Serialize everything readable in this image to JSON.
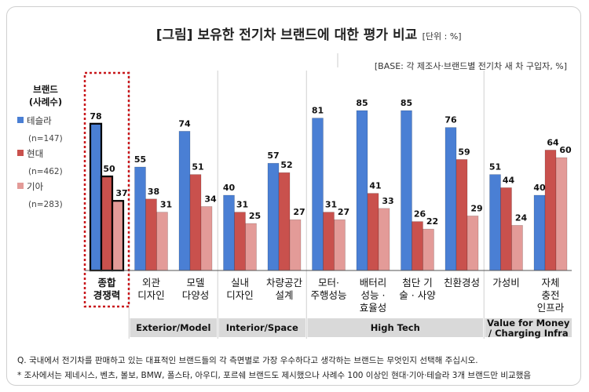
{
  "chart_data": {
    "type": "bar",
    "title": "[그림] 보유한 전기차 브랜드에 대한 평가 비교",
    "unit": "[단위 : %]",
    "base": "[BASE: 각 제조사·브랜드별 전기차 새 차 구입자, %]",
    "legend": {
      "title_line1": "브랜드",
      "title_line2": "(사례수)"
    },
    "series": [
      {
        "name": "테슬라",
        "n": "(n=147)",
        "color": "#4a7fd4",
        "values": [
          78,
          55,
          74,
          40,
          57,
          81,
          85,
          85,
          76,
          51,
          40
        ]
      },
      {
        "name": "현대",
        "n": "(n=462)",
        "color": "#c9514d",
        "values": [
          50,
          38,
          51,
          31,
          52,
          31,
          41,
          26,
          59,
          44,
          64
        ]
      },
      {
        "name": "기아",
        "n": "(n=283)",
        "color": "#e39b98",
        "values": [
          37,
          31,
          34,
          25,
          27,
          27,
          33,
          22,
          29,
          24,
          60
        ]
      }
    ],
    "categories": [
      {
        "lines": [
          "종합",
          "경쟁력"
        ],
        "highlight": true
      },
      {
        "lines": [
          "외관",
          "디자인"
        ]
      },
      {
        "lines": [
          "모델",
          "다양성"
        ]
      },
      {
        "lines": [
          "실내",
          "디자인"
        ]
      },
      {
        "lines": [
          "차량공간",
          "설계"
        ]
      },
      {
        "lines": [
          "모터·",
          "주행성능"
        ]
      },
      {
        "lines": [
          "배터리",
          "성능 ·",
          "효율성"
        ]
      },
      {
        "lines": [
          "첨단 기",
          "술 · 사양"
        ]
      },
      {
        "lines": [
          "친환경성"
        ]
      },
      {
        "lines": [
          "가성비"
        ]
      },
      {
        "lines": [
          "자체",
          "충전",
          "인프라"
        ]
      }
    ],
    "groups": [
      {
        "lines": [
          "Exterior/Model"
        ],
        "from": 1,
        "to": 2
      },
      {
        "lines": [
          "Interior/Space"
        ],
        "from": 3,
        "to": 4
      },
      {
        "lines": [
          "High Tech"
        ],
        "from": 5,
        "to": 8
      },
      {
        "lines": [
          "Value for Money",
          "/ Charging Infra"
        ],
        "from": 9,
        "to": 10
      }
    ],
    "ylim": [
      0,
      100
    ],
    "grid": false
  },
  "notes": {
    "question": "Q. 국내에서 전기차를 판매하고 있는 대표적인 브랜드들의 각 측면별로 가장 우수하다고 생각하는 브랜드는 무엇인지 선택해 주십시오.",
    "footnote": "* 조사에서는 제네시스, 벤츠, 볼보, BMW, 폴스타, 아우디, 포르쉐 브랜드도 제시했으나 사례수 100 이상인 현대·기아·테슬라 3개 브랜드만 비교했음"
  }
}
